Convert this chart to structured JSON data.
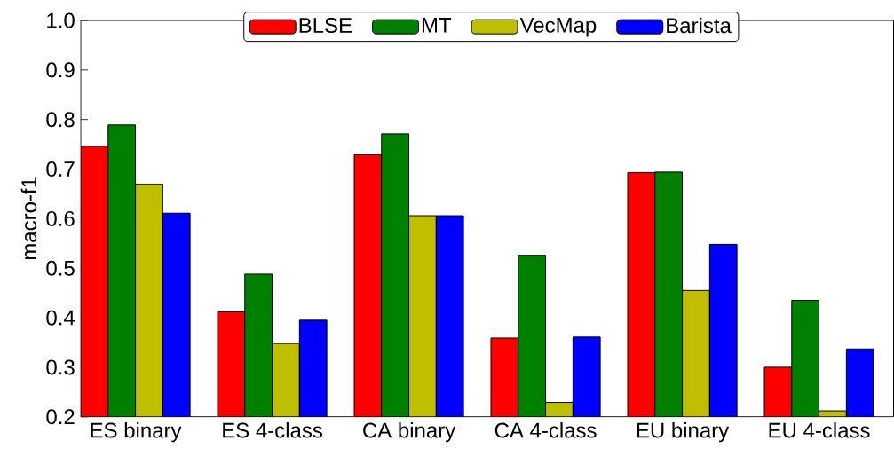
{
  "chart_data": {
    "type": "bar",
    "ylabel": "macro-f1",
    "categories": [
      "ES binary",
      "ES 4-class",
      "CA binary",
      "CA 4-class",
      "EU binary",
      "EU 4-class"
    ],
    "series": [
      {
        "name": "BLSE",
        "color": "#ff0000",
        "values": [
          0.746,
          0.412,
          0.729,
          0.359,
          0.693,
          0.3
        ]
      },
      {
        "name": "MT",
        "color": "#008000",
        "values": [
          0.789,
          0.488,
          0.771,
          0.526,
          0.694,
          0.435
        ]
      },
      {
        "name": "VecMap",
        "color": "#bfbf00",
        "values": [
          0.67,
          0.348,
          0.606,
          0.229,
          0.455,
          0.212
        ]
      },
      {
        "name": "Barista",
        "color": "#0000ff",
        "values": [
          0.611,
          0.395,
          0.606,
          0.361,
          0.548,
          0.337
        ]
      }
    ],
    "ylim": [
      0.2,
      1.0
    ],
    "yticks": [
      0.2,
      0.3,
      0.4,
      0.5,
      0.6,
      0.7,
      0.8,
      0.9,
      {
        "value": 1.0,
        "label": "1.0"
      }
    ],
    "legend": "top",
    "grid": false
  }
}
